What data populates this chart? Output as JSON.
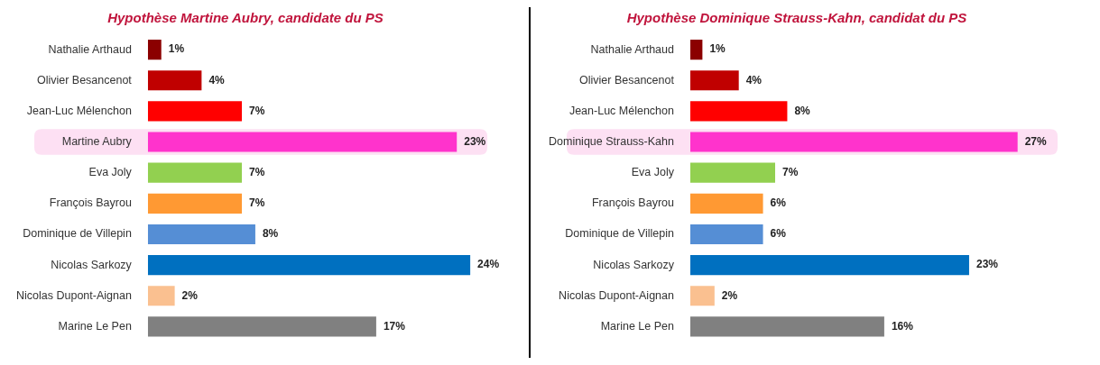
{
  "chart_data": [
    {
      "type": "bar",
      "orientation": "horizontal",
      "title": "Hypothèse Martine Aubry, candidate du PS",
      "categories": [
        "Nathalie Arthaud",
        "Olivier Besancenot",
        "Jean-Luc Mélenchon",
        "Martine Aubry",
        "Eva Joly",
        "François Bayrou",
        "Dominique de Villepin",
        "Nicolas Sarkozy",
        "Nicolas Dupont-Aignan",
        "Marine Le Pen"
      ],
      "values": [
        1,
        4,
        7,
        23,
        7,
        7,
        8,
        24,
        2,
        17
      ],
      "value_labels": [
        "1%",
        "4%",
        "7%",
        "23%",
        "7%",
        "7%",
        "8%",
        "24%",
        "2%",
        "17%"
      ],
      "colors": [
        "#8b0000",
        "#c00000",
        "#ff0000",
        "#ff33cc",
        "#92d050",
        "#ff9933",
        "#558ed5",
        "#0070c0",
        "#fac090",
        "#808080"
      ],
      "bands": [
        {
          "axis": "y",
          "from": "Martine Aubry",
          "to": "Martine Aubry",
          "color": "#fde0f3"
        }
      ],
      "grid": false,
      "legend": false
    },
    {
      "type": "bar",
      "orientation": "horizontal",
      "title": "Hypothèse Dominique Strauss-Kahn, candidat du PS",
      "categories": [
        "Nathalie Arthaud",
        "Olivier Besancenot",
        "Jean-Luc Mélenchon",
        "Dominique Strauss-Kahn",
        "Eva Joly",
        "François Bayrou",
        "Dominique de Villepin",
        "Nicolas Sarkozy",
        "Nicolas Dupont-Aignan",
        "Marine Le Pen"
      ],
      "values": [
        1,
        4,
        8,
        27,
        7,
        6,
        6,
        23,
        2,
        16
      ],
      "value_labels": [
        "1%",
        "4%",
        "8%",
        "27%",
        "7%",
        "6%",
        "6%",
        "23%",
        "2%",
        "16%"
      ],
      "colors": [
        "#8b0000",
        "#c00000",
        "#ff0000",
        "#ff33cc",
        "#92d050",
        "#ff9933",
        "#558ed5",
        "#0070c0",
        "#fac090",
        "#808080"
      ],
      "bands": [
        {
          "axis": "y",
          "from": "Dominique Strauss-Kahn",
          "to": "Dominique Strauss-Kahn",
          "color": "#fde0f3"
        }
      ],
      "grid": false,
      "legend": false
    }
  ]
}
